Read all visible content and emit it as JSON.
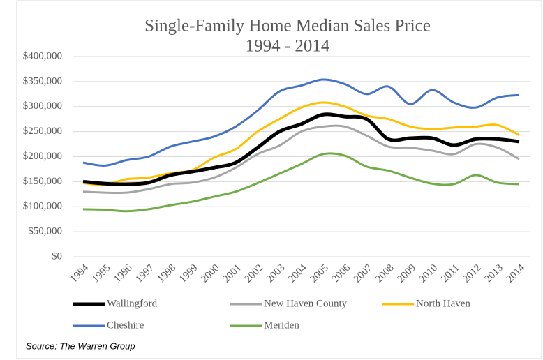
{
  "chart_data": {
    "type": "line",
    "title": "Single-Family Home Median Sales Price",
    "subtitle": "1994 - 2014",
    "categories": [
      "1994",
      "1995",
      "1996",
      "1997",
      "1998",
      "1999",
      "2000",
      "2001",
      "2002",
      "2003",
      "2004",
      "2005",
      "2006",
      "2007",
      "2008",
      "2009",
      "2010",
      "2011",
      "2012",
      "2013",
      "2014"
    ],
    "series": [
      {
        "name": "Wallingford",
        "color": "#000000",
        "values": [
          150000,
          146000,
          145000,
          148000,
          163000,
          170000,
          178000,
          188000,
          218000,
          250000,
          265000,
          284000,
          280000,
          275000,
          235000,
          237000,
          237000,
          223000,
          235000,
          235000,
          230000
        ]
      },
      {
        "name": "New Haven County",
        "color": "#a5a5a5",
        "values": [
          130000,
          128000,
          128000,
          135000,
          145000,
          148000,
          158000,
          178000,
          205000,
          222000,
          250000,
          260000,
          260000,
          242000,
          220000,
          218000,
          212000,
          205000,
          225000,
          218000,
          195000
        ]
      },
      {
        "name": "North Haven",
        "color": "#ffc000",
        "values": [
          147000,
          144000,
          155000,
          158000,
          167000,
          173000,
          198000,
          215000,
          250000,
          275000,
          298000,
          308000,
          300000,
          282000,
          275000,
          260000,
          255000,
          258000,
          260000,
          263000,
          243000
        ]
      },
      {
        "name": "Cheshire",
        "color": "#4472c4",
        "values": [
          188000,
          182000,
          193000,
          200000,
          220000,
          230000,
          240000,
          260000,
          292000,
          330000,
          342000,
          354000,
          345000,
          325000,
          340000,
          305000,
          333000,
          308000,
          298000,
          318000,
          323000
        ]
      },
      {
        "name": "Meriden",
        "color": "#70ad47",
        "values": [
          95000,
          94000,
          91000,
          95000,
          103000,
          110000,
          120000,
          130000,
          147000,
          166000,
          185000,
          205000,
          202000,
          180000,
          172000,
          158000,
          146000,
          145000,
          163000,
          148000,
          145000
        ]
      }
    ],
    "ylim": [
      0,
      400000
    ],
    "yticks": [
      {
        "value": 0,
        "label": "$0"
      },
      {
        "value": 50000,
        "label": "$50,000"
      },
      {
        "value": 100000,
        "label": "$100,000"
      },
      {
        "value": 150000,
        "label": "$150,000"
      },
      {
        "value": 200000,
        "label": "$200,000"
      },
      {
        "value": 250000,
        "label": "$250,000"
      },
      {
        "value": 300000,
        "label": "$300,000"
      },
      {
        "value": 350000,
        "label": "$350,000"
      },
      {
        "value": 400000,
        "label": "$400,000"
      }
    ],
    "grid": true,
    "legend": "bottom",
    "source": "Source: The Warren Group"
  }
}
